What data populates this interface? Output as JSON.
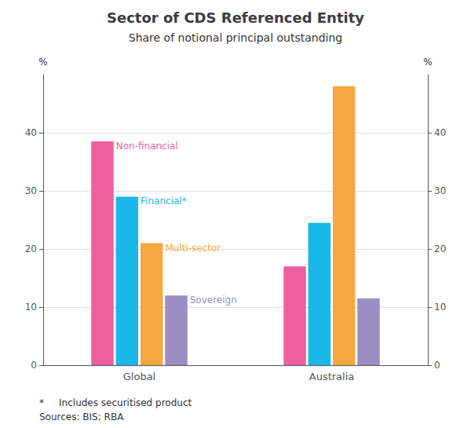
{
  "chart_data": {
    "type": "bar",
    "title": "Sector of CDS Referenced Entity",
    "subtitle": "Share of notional principal outstanding",
    "categories": [
      "Global",
      "Australia"
    ],
    "series": [
      {
        "name": "Non-financial",
        "color": "#EE5FA0",
        "values": [
          38.5,
          17.0
        ]
      },
      {
        "name": "Financial*",
        "color": "#1AB8E8",
        "values": [
          29.0,
          24.5
        ]
      },
      {
        "name": "Multi-sector",
        "color": "#F5A840",
        "values": [
          21.0,
          48.0
        ]
      },
      {
        "name": "Sovereign",
        "color": "#9B8EC4",
        "values": [
          12.0,
          11.5
        ]
      }
    ],
    "ylim": [
      0,
      50
    ],
    "yticks": [
      0,
      10,
      20,
      30,
      40
    ],
    "y2lim": [
      0,
      50
    ],
    "y2ticks": [
      0,
      10,
      20,
      30,
      40
    ],
    "ylabel": "%",
    "y2label": "%",
    "footnotes": [
      "*     Includes securitised product",
      "Sources: BIS; RBA"
    ],
    "grid": true
  }
}
